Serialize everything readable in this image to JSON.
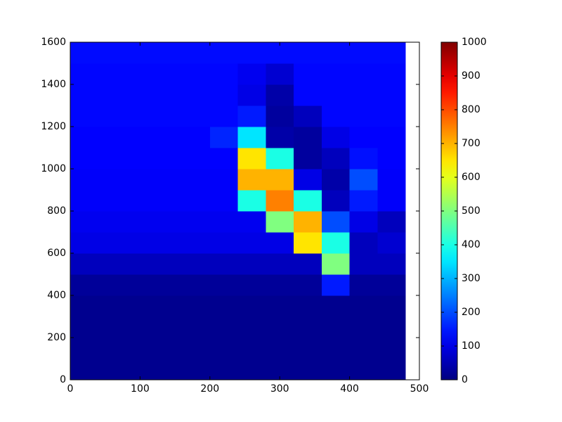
{
  "chart_data": {
    "type": "heatmap",
    "x_edges": [
      0,
      40,
      80,
      120,
      160,
      200,
      240,
      280,
      320,
      360,
      400,
      440,
      480
    ],
    "y_edges": [
      0,
      100,
      200,
      300,
      400,
      500,
      600,
      700,
      800,
      900,
      1000,
      1100,
      1200,
      1300,
      1400,
      1500,
      1600
    ],
    "values": [
      [
        15,
        15,
        15,
        15,
        15,
        15,
        15,
        15,
        15,
        15,
        15,
        15
      ],
      [
        15,
        15,
        15,
        15,
        15,
        15,
        15,
        15,
        15,
        15,
        15,
        15
      ],
      [
        15,
        15,
        15,
        15,
        15,
        15,
        15,
        15,
        15,
        15,
        15,
        15
      ],
      [
        15,
        15,
        15,
        15,
        15,
        15,
        15,
        15,
        15,
        15,
        15,
        15
      ],
      [
        25,
        25,
        25,
        25,
        25,
        25,
        25,
        25,
        25,
        150,
        25,
        25
      ],
      [
        60,
        60,
        60,
        60,
        60,
        60,
        60,
        60,
        60,
        500,
        60,
        60
      ],
      [
        100,
        100,
        100,
        100,
        100,
        100,
        100,
        100,
        650,
        400,
        60,
        80
      ],
      [
        110,
        110,
        110,
        110,
        110,
        110,
        110,
        500,
        700,
        200,
        100,
        60
      ],
      [
        120,
        120,
        120,
        120,
        120,
        120,
        400,
        750,
        400,
        60,
        150,
        120
      ],
      [
        120,
        120,
        120,
        120,
        120,
        120,
        700,
        700,
        100,
        40,
        200,
        120
      ],
      [
        125,
        125,
        125,
        125,
        125,
        125,
        650,
        400,
        30,
        60,
        140,
        125
      ],
      [
        125,
        125,
        125,
        125,
        125,
        160,
        350,
        40,
        30,
        100,
        125,
        125
      ],
      [
        130,
        130,
        130,
        130,
        130,
        130,
        150,
        30,
        60,
        130,
        130,
        130
      ],
      [
        130,
        130,
        130,
        130,
        130,
        130,
        100,
        40,
        130,
        130,
        130,
        130
      ],
      [
        130,
        130,
        130,
        130,
        130,
        130,
        110,
        80,
        130,
        130,
        130,
        130
      ],
      [
        135,
        135,
        135,
        135,
        135,
        135,
        135,
        135,
        135,
        135,
        135,
        135
      ]
    ],
    "xlim": [
      0,
      500
    ],
    "xticks": [
      0,
      100,
      200,
      300,
      400,
      500
    ],
    "ylim": [
      0,
      1600
    ],
    "yticks": [
      0,
      200,
      400,
      600,
      800,
      1000,
      1200,
      1400,
      1600
    ],
    "colormap": "jet",
    "colorbar": {
      "clim": [
        0,
        1000
      ],
      "ticks": [
        0,
        100,
        200,
        300,
        400,
        500,
        600,
        700,
        800,
        900,
        1000
      ]
    }
  }
}
